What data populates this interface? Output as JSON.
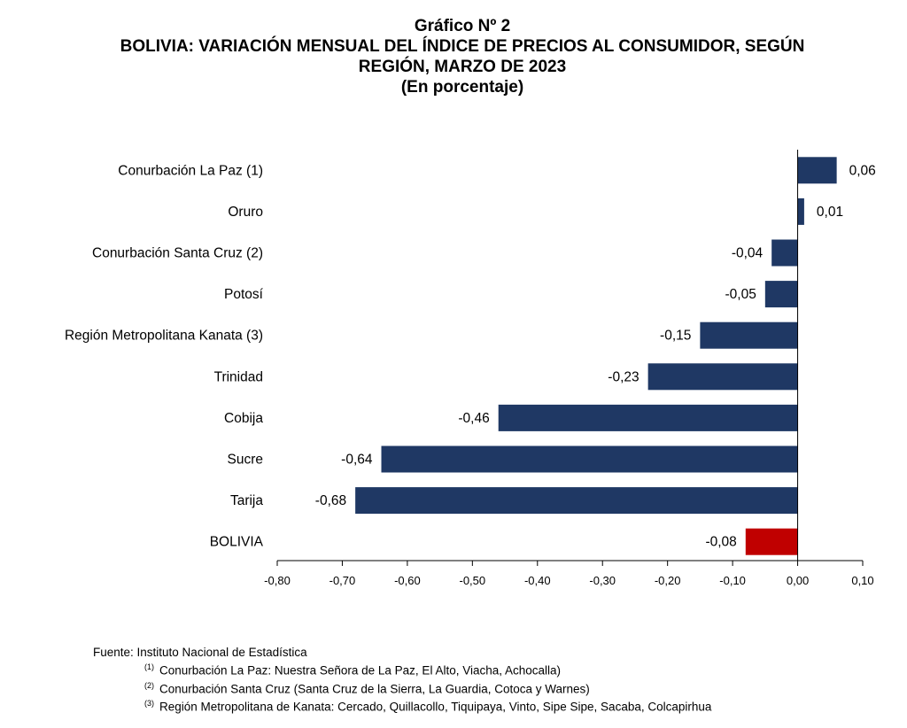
{
  "chart_data": {
    "type": "bar",
    "orientation": "horizontal",
    "title_lines": [
      "Gráfico Nº 2",
      "BOLIVIA: VARIACIÓN MENSUAL DEL ÍNDICE DE PRECIOS AL CONSUMIDOR, SEGÚN",
      "REGIÓN, MARZO DE 2023",
      "(En porcentaje)"
    ],
    "categories": [
      "Conurbación La Paz (1)",
      "Oruro",
      "Conurbación Santa Cruz (2)",
      "Potosí",
      "Región Metropolitana Kanata (3)",
      "Trinidad",
      "Cobija",
      "Sucre",
      "Tarija",
      "BOLIVIA"
    ],
    "values": [
      0.06,
      0.01,
      -0.04,
      -0.05,
      -0.15,
      -0.23,
      -0.46,
      -0.64,
      -0.68,
      -0.08
    ],
    "value_labels": [
      "0,06",
      "0,01",
      "-0,04",
      "-0,05",
      "-0,15",
      "-0,23",
      "-0,46",
      "-0,64",
      "-0,68",
      "-0,08"
    ],
    "bar_colors": [
      "#1f3864",
      "#1f3864",
      "#1f3864",
      "#1f3864",
      "#1f3864",
      "#1f3864",
      "#1f3864",
      "#1f3864",
      "#1f3864",
      "#c00000"
    ],
    "xlim": [
      -0.8,
      0.1
    ],
    "x_ticks": [
      -0.8,
      -0.7,
      -0.6,
      -0.5,
      -0.4,
      -0.3,
      -0.2,
      -0.1,
      0.0,
      0.1
    ],
    "x_tick_labels": [
      "-0,80",
      "-0,70",
      "-0,60",
      "-0,50",
      "-0,40",
      "-0,30",
      "-0,20",
      "-0,10",
      "0,00",
      "0,10"
    ],
    "grid": false,
    "legend": "none"
  },
  "footer": {
    "source": "Fuente: Instituto Nacional de Estadística",
    "notes": [
      {
        "mark": "(1)",
        "text": "Conurbación La Paz: Nuestra Señora de La Paz, El Alto, Viacha, Achocalla)"
      },
      {
        "mark": "(2)",
        "text": "Conurbación Santa Cruz (Santa Cruz de la Sierra, La Guardia, Cotoca y Warnes)"
      },
      {
        "mark": "(3)",
        "text": "Región Metropolitana de Kanata: Cercado, Quillacollo, Tiquipaya, Vinto, Sipe Sipe, Sacaba, Colcapirhua"
      }
    ]
  }
}
